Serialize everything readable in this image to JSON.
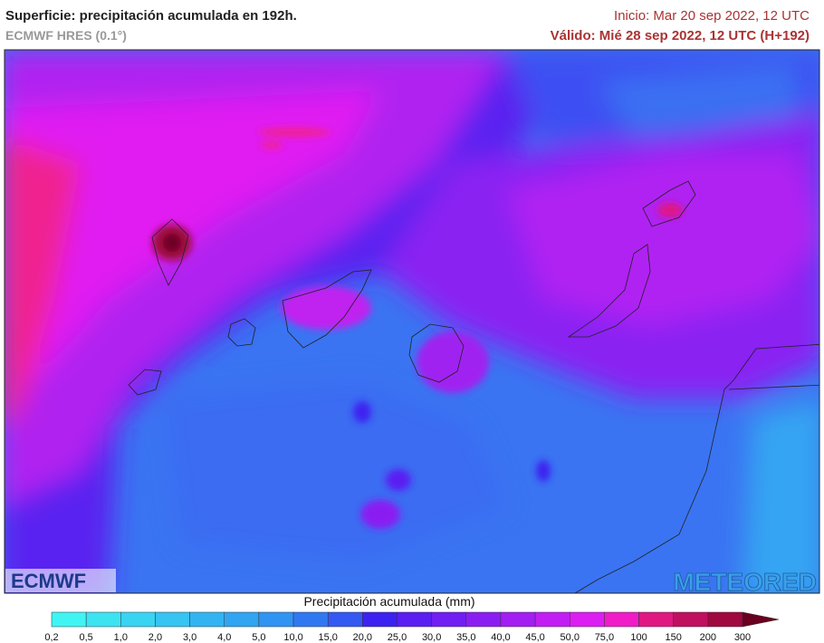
{
  "header": {
    "title": "Superficie: precipitación acumulada en 192h.",
    "model": "ECMWF HRES (0.1°)",
    "init": "Inicio: Mar 20 sep 2022, 12 UTC",
    "valid": "Válido: Mié 28 sep 2022, 12 UTC (H+192)"
  },
  "logos": {
    "left": "ECMWF",
    "right": "METEORED"
  },
  "legend": {
    "title": "Precipitación acumulada (mm)",
    "ticks": [
      "0,2",
      "0,5",
      "1,0",
      "2,0",
      "3,0",
      "4,0",
      "5,0",
      "10,0",
      "15,0",
      "20,0",
      "25,0",
      "30,0",
      "35,0",
      "40,0",
      "45,0",
      "50,0",
      "75,0",
      "100",
      "150",
      "200",
      "300"
    ],
    "colors": [
      "#40f4f4",
      "#3ce4f2",
      "#39d4f2",
      "#36c4f2",
      "#33b4f2",
      "#31a4f2",
      "#3094f2",
      "#3078f2",
      "#3458f2",
      "#3c22f0",
      "#5a1ef2",
      "#701ef2",
      "#8a1ef2",
      "#a21ef2",
      "#c01ef2",
      "#dc1ef2",
      "#f01cc8",
      "#e01882",
      "#c01060",
      "#a00840"
    ],
    "over_color": "#6a0020"
  }
}
